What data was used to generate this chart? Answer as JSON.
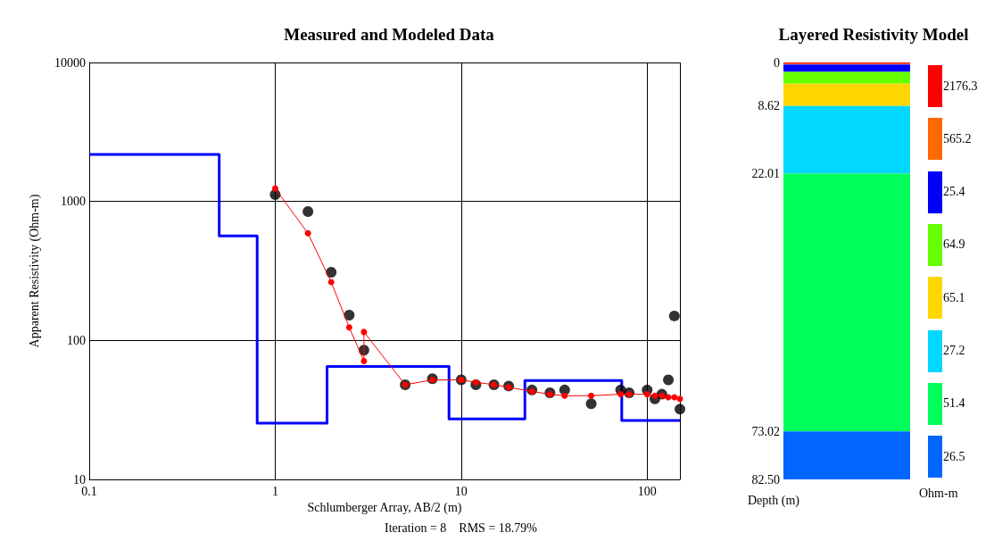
{
  "chart_data": [
    {
      "type": "line",
      "title": "Measured and Modeled Data",
      "xlabel": "Schlumberger Array, AB/2 (m)",
      "ylabel": "Apparent Resistivity (Ohm-m)",
      "annotations": [
        "Iteration = 8    RMS = 18.79%"
      ],
      "log": "xy",
      "grid": true,
      "legend": false,
      "xlim": [
        0.1,
        150
      ],
      "xticks": [
        0.1,
        1,
        10,
        100
      ],
      "ylim": [
        10,
        10000
      ],
      "yticks": [
        10,
        100,
        1000,
        10000
      ],
      "series": [
        {
          "type": "step",
          "color": "#0000ff",
          "marker": "none",
          "x": [
            0.1,
            0.5,
            0.8,
            1.9,
            8.6,
            22,
            73,
            150
          ],
          "values": [
            2176.3,
            565.2,
            25.4,
            64.9,
            27.2,
            51.4,
            26.5,
            26.5
          ]
        },
        {
          "type": "line",
          "color": "#ff0000",
          "marker": "circle",
          "x": [
            1,
            1.5,
            2,
            2.5,
            3,
            3,
            5,
            7,
            10,
            12,
            15,
            18,
            24,
            30,
            36,
            50,
            72,
            80,
            100,
            110,
            120,
            130,
            140,
            150
          ],
          "values": [
            1240,
            590,
            263,
            124,
            71,
            115,
            48,
            52,
            52,
            50,
            48,
            46,
            43,
            41,
            40,
            40,
            41,
            41,
            41,
            40,
            40,
            39,
            39,
            38
          ]
        },
        {
          "type": "scatter",
          "color": "#000000",
          "marker": "circle",
          "x": [
            1,
            1.5,
            2,
            2.5,
            3,
            5,
            7,
            10,
            12,
            15,
            18,
            24,
            30,
            36,
            50,
            72,
            80,
            100,
            110,
            120,
            130,
            140,
            150
          ],
          "values": [
            1120,
            845,
            309,
            152,
            85,
            48,
            53,
            52,
            48,
            48,
            47,
            44,
            42,
            44,
            35,
            44,
            42,
            44,
            38,
            41,
            52,
            150,
            32
          ]
        }
      ]
    },
    {
      "type": "bar",
      "title": "Layered Resistivity Model",
      "xlabel": "Depth (m)",
      "legend_title": "Ohm-m",
      "stacked": true,
      "legend": "right",
      "categories": [
        null
      ],
      "ylim": [
        82.5,
        0
      ],
      "yticks": [
        0,
        8.62,
        22.01,
        73.02,
        {
          "value": 82.5,
          "label": "82.50"
        }
      ],
      "series": [
        {
          "name": "2176.3",
          "color": "#ff0000",
          "values": [
            0.25
          ]
        },
        {
          "name": "565.2",
          "color": "#ff6a00",
          "values": [
            0.15
          ]
        },
        {
          "name": "25.4",
          "color": "#0000ff",
          "values": [
            1.45
          ]
        },
        {
          "name": "64.9",
          "color": "#66ff00",
          "values": [
            2.35
          ]
        },
        {
          "name": "65.1",
          "color": "#ffd700",
          "values": [
            4.42
          ]
        },
        {
          "name": "27.2",
          "color": "#00d8ff",
          "values": [
            13.39
          ]
        },
        {
          "name": "51.4",
          "color": "#00ff5a",
          "values": [
            51.01
          ]
        },
        {
          "name": "26.5",
          "color": "#0066ff",
          "values": [
            9.48
          ]
        }
      ]
    }
  ]
}
